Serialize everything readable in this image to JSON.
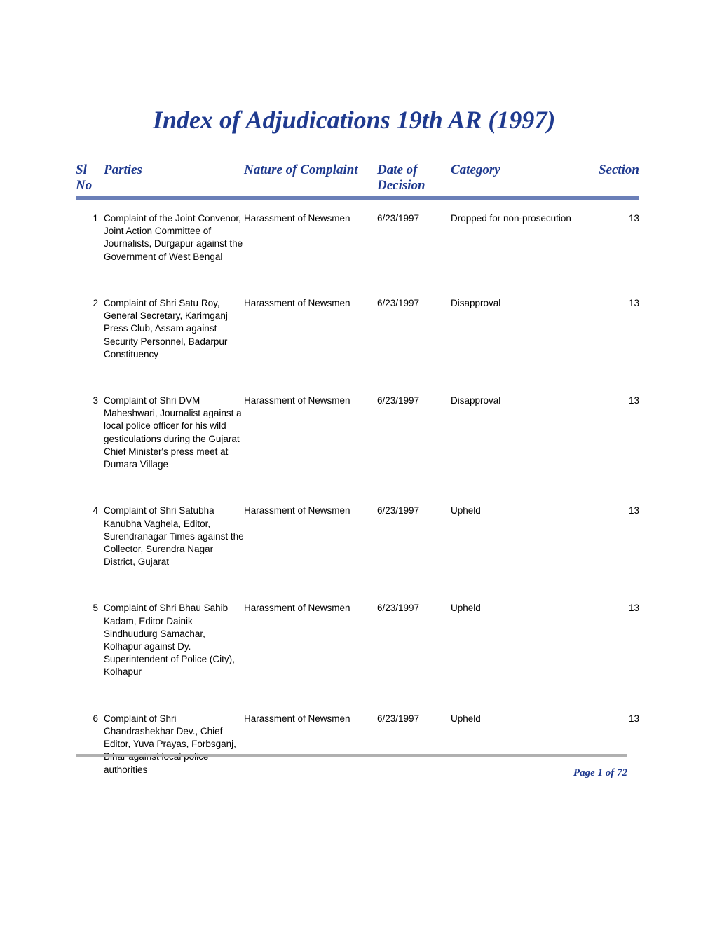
{
  "title": "Index of Adjudications 19th AR (1997)",
  "title_color": "#1f3a8f",
  "title_fontsize": 36,
  "header_border_color": "#6b7fb8",
  "footer_line_color": "#b0b0b0",
  "body_fontsize": 13.5,
  "header_fontsize": 19,
  "text_color": "#000000",
  "background_color": "#ffffff",
  "columns": {
    "slno": "Sl No",
    "parties": "Parties",
    "nature": "Nature of Complaint",
    "date": "Date of Decision",
    "category": "Category",
    "section": "Section"
  },
  "rows": [
    {
      "slno": "1",
      "parties": "Complaint of the Joint Convenor, Joint Action Committee of Journalists, Durgapur against the Government of West Bengal",
      "nature": "Harassment of Newsmen",
      "date": "6/23/1997",
      "category": "Dropped for non-prosecution",
      "section": "13"
    },
    {
      "slno": "2",
      "parties": "Complaint of Shri Satu Roy, General Secretary, Karimganj Press Club, Assam against Security Personnel, Badarpur Constituency",
      "nature": "Harassment of Newsmen",
      "date": "6/23/1997",
      "category": "Disapproval",
      "section": "13"
    },
    {
      "slno": "3",
      "parties": "Complaint of Shri DVM Maheshwari, Journalist against a local police officer for his wild gesticulations during the Gujarat Chief Minister's press meet at Dumara Village",
      "nature": "Harassment of Newsmen",
      "date": "6/23/1997",
      "category": "Disapproval",
      "section": "13"
    },
    {
      "slno": "4",
      "parties": "Complaint of Shri Satubha Kanubha Vaghela, Editor, Surendranagar Times against the Collector, Surendra Nagar District, Gujarat",
      "nature": "Harassment of Newsmen",
      "date": "6/23/1997",
      "category": "Upheld",
      "section": "13"
    },
    {
      "slno": "5",
      "parties": "Complaint of Shri Bhau Sahib Kadam, Editor Dainik Sindhuudurg Samachar, Kolhapur against Dy. Superintendent of Police (City), Kolhapur",
      "nature": "Harassment of Newsmen",
      "date": "6/23/1997",
      "category": "Upheld",
      "section": "13"
    },
    {
      "slno": "6",
      "parties": "Complaint of Shri Chandrashekhar Dev., Chief Editor, Yuva Prayas, Forbsganj, Bihar against local police authorities",
      "nature": "Harassment of Newsmen",
      "date": "6/23/1997",
      "category": "Upheld",
      "section": "13"
    }
  ],
  "page_number": "Page 1 of 72"
}
